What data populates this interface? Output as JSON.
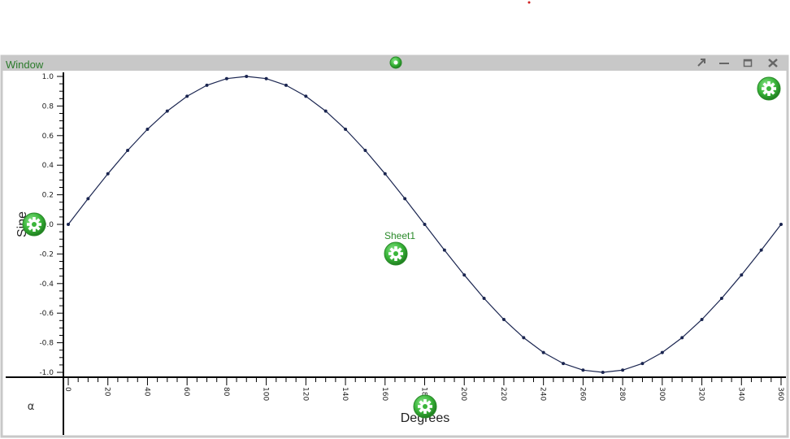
{
  "window": {
    "title": "Window"
  },
  "sheet": {
    "label": "Sheet1"
  },
  "corner_symbol": "α",
  "colors": {
    "line": "#1a2550",
    "gear": "#3ab53a",
    "titlebar": "#c8c8c8",
    "title_text": "#2a7a2a"
  },
  "icons": [
    "gear-icon",
    "restore-arrow-icon",
    "minimize-icon",
    "maximize-icon",
    "close-icon"
  ],
  "chart_data": {
    "type": "line",
    "xlabel": "Degrees",
    "ylabel": "Sine",
    "xlim": [
      0,
      360
    ],
    "ylim": [
      -1.0,
      1.0
    ],
    "x_ticks": [
      "0",
      "20",
      "40",
      "60",
      "80",
      "100",
      "120",
      "140",
      "160",
      "180",
      "200",
      "220",
      "240",
      "260",
      "280",
      "300",
      "320",
      "340",
      "360"
    ],
    "y_ticks": [
      "1.0",
      "0.8",
      "0.6",
      "0.4",
      "0.2",
      "0.0",
      "-0.2",
      "-0.4",
      "-0.6",
      "-0.8",
      "-1.0"
    ],
    "grid": false,
    "series": [
      {
        "x": [
          0,
          10,
          20,
          30,
          40,
          50,
          60,
          70,
          80,
          90,
          100,
          110,
          120,
          130,
          140,
          150,
          160,
          170,
          180,
          190,
          200,
          210,
          220,
          230,
          240,
          250,
          260,
          270,
          280,
          290,
          300,
          310,
          320,
          330,
          340,
          350,
          360
        ],
        "values": [
          0,
          0.174,
          0.342,
          0.5,
          0.643,
          0.766,
          0.866,
          0.94,
          0.985,
          1.0,
          0.985,
          0.94,
          0.866,
          0.766,
          0.643,
          0.5,
          0.342,
          0.174,
          0,
          -0.174,
          -0.342,
          -0.5,
          -0.643,
          -0.766,
          -0.866,
          -0.94,
          -0.985,
          -1.0,
          -0.985,
          -0.94,
          -0.866,
          -0.766,
          -0.643,
          -0.5,
          -0.342,
          -0.174,
          0
        ]
      }
    ]
  }
}
